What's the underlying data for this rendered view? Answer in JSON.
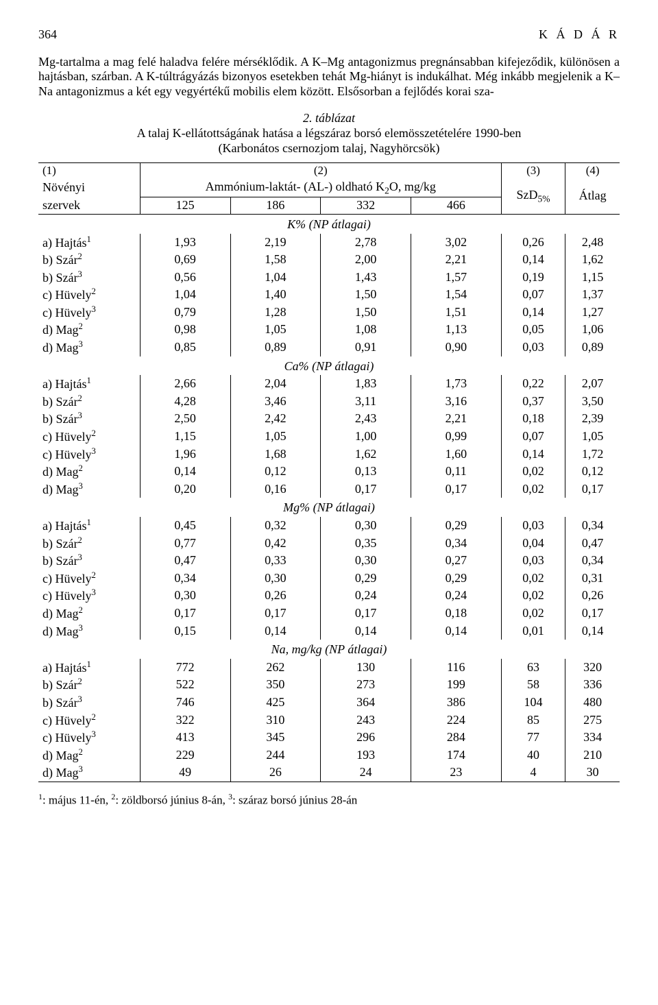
{
  "page": {
    "number": "364",
    "header_right": "K Á D Á R"
  },
  "paragraph": "Mg-tartalma a mag felé haladva felére mérséklődik. A K–Mg antagonizmus pregnánsabban kifejeződik, különösen a hajtásban, szárban. A K-túltrágyázás bizonyos esetekben tehát Mg-hiányt is indukálhat. Még inkább megjelenik a K–Na antagonizmus a két  egy vegyértékű  mobilis elem között. Elsősorban a fejlődés korai sza-",
  "table_caption": {
    "num": "2. táblázat",
    "line1": "A talaj K-ellátottságának hatása a légszáraz borsó elemösszetételére 1990-ben",
    "line2": "(Karbonátos csernozjom talaj, Nagyhörcsök)"
  },
  "headers": {
    "col1_num": "(1)",
    "col1_l1": "Növényi",
    "col1_l2": "szervek",
    "col2_num": "(2)",
    "col2_line": "Ammónium-laktát- (AL-) oldható K",
    "col2_sub": "2",
    "col2_tail": "O, mg/kg",
    "sub_125": "125",
    "sub_186": "186",
    "sub_332": "332",
    "sub_466": "466",
    "col3_num": "(3)",
    "col3_l": "SzD",
    "col3_sub": "5%",
    "col4_num": "(4)",
    "col4_l": "Átlag"
  },
  "sections": [
    {
      "title": "K% (NP átlagai)",
      "rows": [
        {
          "name": "a) Hajtás",
          "sup": "1",
          "v": [
            "1,93",
            "2,19",
            "2,78",
            "3,02",
            "0,26",
            "2,48"
          ]
        },
        {
          "name": "b) Szár",
          "sup": "2",
          "v": [
            "0,69",
            "1,58",
            "2,00",
            "2,21",
            "0,14",
            "1,62"
          ]
        },
        {
          "name": "b) Szár",
          "sup": "3",
          "v": [
            "0,56",
            "1,04",
            "1,43",
            "1,57",
            "0,19",
            "1,15"
          ]
        },
        {
          "name": "c) Hüvely",
          "sup": "2",
          "v": [
            "1,04",
            "1,40",
            "1,50",
            "1,54",
            "0,07",
            "1,37"
          ]
        },
        {
          "name": "c) Hüvely",
          "sup": "3",
          "v": [
            "0,79",
            "1,28",
            "1,50",
            "1,51",
            "0,14",
            "1,27"
          ]
        },
        {
          "name": "d) Mag",
          "sup": "2",
          "v": [
            "0,98",
            "1,05",
            "1,08",
            "1,13",
            "0,05",
            "1,06"
          ]
        },
        {
          "name": "d) Mag",
          "sup": "3",
          "v": [
            "0,85",
            "0,89",
            "0,91",
            "0,90",
            "0,03",
            "0,89"
          ]
        }
      ]
    },
    {
      "title": "Ca% (NP átlagai)",
      "rows": [
        {
          "name": "a) Hajtás",
          "sup": "1",
          "v": [
            "2,66",
            "2,04",
            "1,83",
            "1,73",
            "0,22",
            "2,07"
          ]
        },
        {
          "name": "b) Szár",
          "sup": "2",
          "v": [
            "4,28",
            "3,46",
            "3,11",
            "3,16",
            "0,37",
            "3,50"
          ]
        },
        {
          "name": "b) Szár",
          "sup": "3",
          "v": [
            "2,50",
            "2,42",
            "2,43",
            "2,21",
            "0,18",
            "2,39"
          ]
        },
        {
          "name": "c) Hüvely",
          "sup": "2",
          "v": [
            "1,15",
            "1,05",
            "1,00",
            "0,99",
            "0,07",
            "1,05"
          ]
        },
        {
          "name": "c) Hüvely",
          "sup": "3",
          "v": [
            "1,96",
            "1,68",
            "1,62",
            "1,60",
            "0,14",
            "1,72"
          ]
        },
        {
          "name": "d) Mag",
          "sup": "2",
          "v": [
            "0,14",
            "0,12",
            "0,13",
            "0,11",
            "0,02",
            "0,12"
          ]
        },
        {
          "name": "d) Mag",
          "sup": "3",
          "v": [
            "0,20",
            "0,16",
            "0,17",
            "0,17",
            "0,02",
            "0,17"
          ]
        }
      ]
    },
    {
      "title": "Mg% (NP átlagai)",
      "rows": [
        {
          "name": "a) Hajtás",
          "sup": "1",
          "v": [
            "0,45",
            "0,32",
            "0,30",
            "0,29",
            "0,03",
            "0,34"
          ]
        },
        {
          "name": "b) Szár",
          "sup": "2",
          "v": [
            "0,77",
            "0,42",
            "0,35",
            "0,34",
            "0,04",
            "0,47"
          ]
        },
        {
          "name": "b) Szár",
          "sup": "3",
          "v": [
            "0,47",
            "0,33",
            "0,30",
            "0,27",
            "0,03",
            "0,34"
          ]
        },
        {
          "name": "c) Hüvely",
          "sup": "2",
          "v": [
            "0,34",
            "0,30",
            "0,29",
            "0,29",
            "0,02",
            "0,31"
          ]
        },
        {
          "name": "c) Hüvely",
          "sup": "3",
          "v": [
            "0,30",
            "0,26",
            "0,24",
            "0,24",
            "0,02",
            "0,26"
          ]
        },
        {
          "name": "d) Mag",
          "sup": "2",
          "v": [
            "0,17",
            "0,17",
            "0,17",
            "0,18",
            "0,02",
            "0,17"
          ]
        },
        {
          "name": "d) Mag",
          "sup": "3",
          "v": [
            "0,15",
            "0,14",
            "0,14",
            "0,14",
            "0,01",
            "0,14"
          ]
        }
      ]
    },
    {
      "title": "Na, mg/kg (NP átlagai)",
      "rows": [
        {
          "name": "a) Hajtás",
          "sup": "1",
          "v": [
            "772",
            "262",
            "130",
            "116",
            "63",
            "320"
          ]
        },
        {
          "name": "b) Szár",
          "sup": "2",
          "v": [
            "522",
            "350",
            "273",
            "199",
            "58",
            "336"
          ]
        },
        {
          "name": "b) Szár",
          "sup": "3",
          "v": [
            "746",
            "425",
            "364",
            "386",
            "104",
            "480"
          ]
        },
        {
          "name": "c) Hüvely",
          "sup": "2",
          "v": [
            "322",
            "310",
            "243",
            "224",
            "85",
            "275"
          ]
        },
        {
          "name": "c) Hüvely",
          "sup": "3",
          "v": [
            "413",
            "345",
            "296",
            "284",
            "77",
            "334"
          ]
        },
        {
          "name": "d) Mag",
          "sup": "2",
          "v": [
            "229",
            "244",
            "193",
            "174",
            "40",
            "210"
          ]
        },
        {
          "name": "d) Mag",
          "sup": "3",
          "v": [
            "49",
            "26",
            "24",
            "23",
            "4",
            "30"
          ]
        }
      ]
    }
  ],
  "footnote": {
    "p1_sup": "1",
    "p1": ": május 11-én, ",
    "p2_sup": "2",
    "p2": ": zöldborsó június 8-án, ",
    "p3_sup": "3",
    "p3": ": száraz borsó június 28-án"
  }
}
